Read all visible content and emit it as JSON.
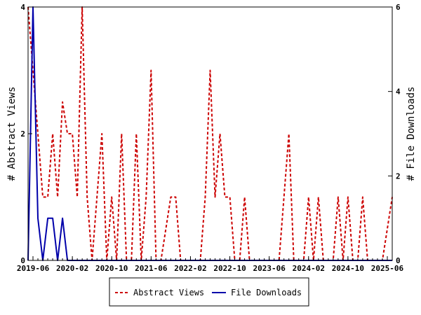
{
  "chart_data": {
    "type": "line",
    "xlabel": "",
    "ylabel_left": "# Abstract Views",
    "ylabel_right": "# File Downloads",
    "xlim": [
      "2019-05-01",
      "2025-07-01"
    ],
    "ylim_left": [
      0,
      4
    ],
    "ylim_right": [
      0,
      6
    ],
    "yticks_left": [
      0,
      2,
      4
    ],
    "yticks_right": [
      0,
      2,
      4,
      6
    ],
    "xticks": [
      "2019-06",
      "2020-02",
      "2020-10",
      "2021-06",
      "2022-02",
      "2022-10",
      "2023-06",
      "2024-02",
      "2024-10",
      "2025-06"
    ],
    "grid": false,
    "legend_position": "bottom",
    "series": [
      {
        "name": "Abstract Views",
        "axis": "left",
        "color": "#cc0000",
        "dash": true,
        "points": [
          [
            "2019-05",
            4
          ],
          [
            "2019-06",
            3
          ],
          [
            "2019-07",
            2
          ],
          [
            "2019-08",
            1
          ],
          [
            "2019-09",
            1
          ],
          [
            "2019-10",
            2
          ],
          [
            "2019-11",
            1
          ],
          [
            "2019-12",
            2.5
          ],
          [
            "2020-01",
            2
          ],
          [
            "2020-02",
            2
          ],
          [
            "2020-03",
            1
          ],
          [
            "2020-04",
            4
          ],
          [
            "2020-05",
            1
          ],
          [
            "2020-06",
            0
          ],
          [
            "2020-07",
            1
          ],
          [
            "2020-08",
            2
          ],
          [
            "2020-09",
            0
          ],
          [
            "2020-10",
            1
          ],
          [
            "2020-11",
            0
          ],
          [
            "2020-12",
            2
          ],
          [
            "2021-01",
            0
          ],
          [
            "2021-02",
            0
          ],
          [
            "2021-03",
            2
          ],
          [
            "2021-04",
            0
          ],
          [
            "2021-05",
            1
          ],
          [
            "2021-06",
            3
          ],
          [
            "2021-07",
            0
          ],
          [
            "2021-08",
            0
          ],
          [
            "2021-09",
            0.5
          ],
          [
            "2021-10",
            1
          ],
          [
            "2021-11",
            1
          ],
          [
            "2021-12",
            0
          ],
          [
            "2022-01",
            0
          ],
          [
            "2022-02",
            0
          ],
          [
            "2022-03",
            0
          ],
          [
            "2022-04",
            0
          ],
          [
            "2022-05",
            1
          ],
          [
            "2022-06",
            3
          ],
          [
            "2022-07",
            1
          ],
          [
            "2022-08",
            2
          ],
          [
            "2022-09",
            1
          ],
          [
            "2022-10",
            1
          ],
          [
            "2022-11",
            0
          ],
          [
            "2022-12",
            0
          ],
          [
            "2023-01",
            1
          ],
          [
            "2023-02",
            0
          ],
          [
            "2023-03",
            0
          ],
          [
            "2023-04",
            0
          ],
          [
            "2023-05",
            0
          ],
          [
            "2023-06",
            0
          ],
          [
            "2023-07",
            0
          ],
          [
            "2023-08",
            0
          ],
          [
            "2023-09",
            1
          ],
          [
            "2023-10",
            2
          ],
          [
            "2023-11",
            0
          ],
          [
            "2023-12",
            0
          ],
          [
            "2024-01",
            0
          ],
          [
            "2024-02",
            1
          ],
          [
            "2024-03",
            0
          ],
          [
            "2024-04",
            1
          ],
          [
            "2024-05",
            0
          ],
          [
            "2024-06",
            0
          ],
          [
            "2024-07",
            0
          ],
          [
            "2024-08",
            1
          ],
          [
            "2024-09",
            0
          ],
          [
            "2024-10",
            1
          ],
          [
            "2024-11",
            0
          ],
          [
            "2024-12",
            0
          ],
          [
            "2025-01",
            1
          ],
          [
            "2025-02",
            0
          ],
          [
            "2025-03",
            0
          ],
          [
            "2025-04",
            0
          ],
          [
            "2025-05",
            0
          ],
          [
            "2025-06",
            0.5
          ],
          [
            "2025-07",
            1
          ]
        ]
      },
      {
        "name": "File Downloads",
        "axis": "right",
        "color": "#0000aa",
        "dash": false,
        "points": [
          [
            "2019-05",
            0
          ],
          [
            "2019-06",
            6
          ],
          [
            "2019-07",
            1
          ],
          [
            "2019-08",
            0
          ],
          [
            "2019-09",
            1
          ],
          [
            "2019-10",
            1
          ],
          [
            "2019-11",
            0
          ],
          [
            "2019-12",
            1
          ],
          [
            "2020-01",
            0
          ],
          [
            "2020-02",
            0
          ],
          [
            "2020-03",
            0
          ],
          [
            "2020-04",
            0
          ],
          [
            "2020-05",
            0
          ],
          [
            "2020-06",
            0
          ],
          [
            "2020-07",
            0
          ],
          [
            "2020-08",
            0
          ],
          [
            "2020-09",
            0
          ],
          [
            "2020-10",
            0
          ],
          [
            "2020-11",
            0
          ],
          [
            "2020-12",
            0
          ],
          [
            "2021-01",
            0
          ],
          [
            "2021-02",
            0
          ],
          [
            "2021-03",
            0
          ],
          [
            "2021-04",
            0
          ],
          [
            "2021-05",
            0
          ],
          [
            "2021-06",
            0
          ],
          [
            "2021-07",
            0
          ],
          [
            "2021-08",
            0
          ],
          [
            "2021-09",
            0
          ],
          [
            "2021-10",
            0
          ],
          [
            "2021-11",
            0
          ],
          [
            "2021-12",
            0
          ],
          [
            "2022-01",
            0
          ],
          [
            "2022-02",
            0
          ],
          [
            "2022-03",
            0
          ],
          [
            "2022-04",
            0
          ],
          [
            "2022-05",
            0
          ],
          [
            "2022-06",
            0
          ],
          [
            "2022-07",
            0
          ],
          [
            "2022-08",
            0
          ],
          [
            "2022-09",
            0
          ],
          [
            "2022-10",
            0
          ],
          [
            "2022-11",
            0
          ],
          [
            "2022-12",
            0
          ],
          [
            "2023-01",
            0
          ],
          [
            "2023-02",
            0
          ],
          [
            "2023-03",
            0
          ],
          [
            "2023-04",
            0
          ],
          [
            "2023-05",
            0
          ],
          [
            "2023-06",
            0
          ],
          [
            "2023-07",
            0
          ],
          [
            "2023-08",
            0
          ],
          [
            "2023-09",
            0
          ],
          [
            "2023-10",
            0
          ],
          [
            "2023-11",
            0
          ],
          [
            "2023-12",
            0
          ],
          [
            "2024-01",
            0
          ],
          [
            "2024-02",
            0
          ],
          [
            "2024-03",
            0
          ],
          [
            "2024-04",
            0
          ],
          [
            "2024-05",
            0
          ],
          [
            "2024-06",
            0
          ],
          [
            "2024-07",
            0
          ],
          [
            "2024-08",
            0
          ],
          [
            "2024-09",
            0
          ],
          [
            "2024-10",
            0
          ],
          [
            "2024-11",
            0
          ],
          [
            "2024-12",
            0
          ],
          [
            "2025-01",
            0
          ],
          [
            "2025-02",
            0
          ],
          [
            "2025-03",
            0
          ],
          [
            "2025-04",
            0
          ],
          [
            "2025-05",
            0
          ],
          [
            "2025-06",
            0
          ],
          [
            "2025-07",
            0
          ]
        ]
      }
    ]
  }
}
